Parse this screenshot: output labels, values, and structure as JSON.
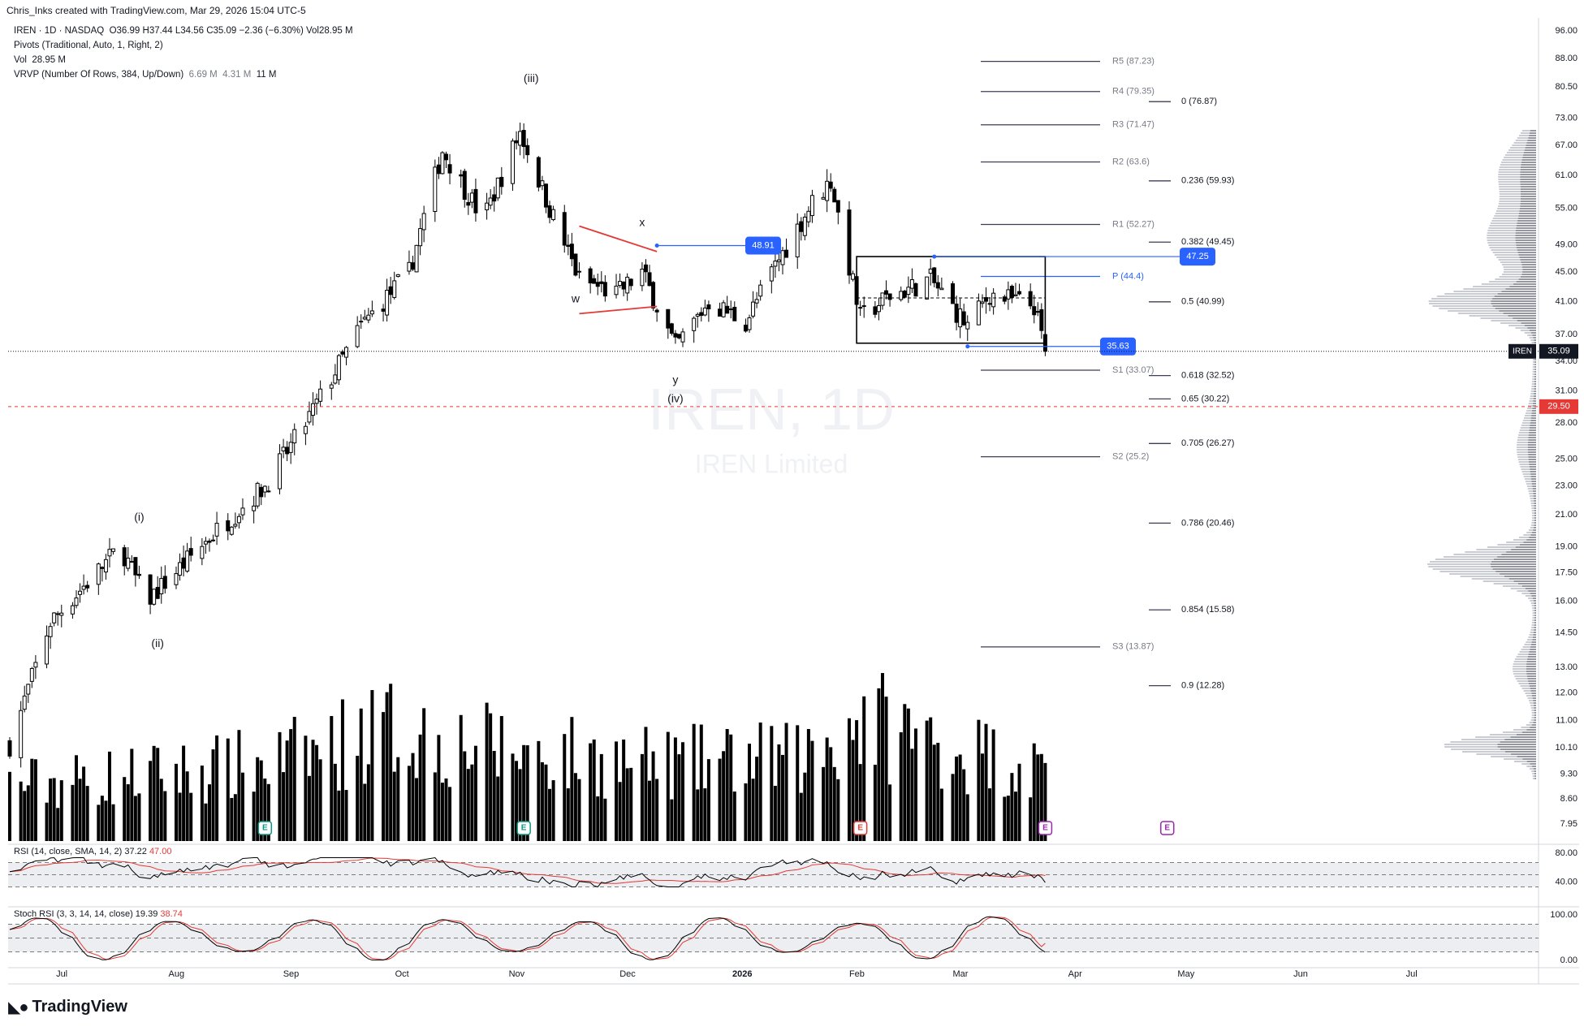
{
  "header": {
    "attribution": "Chris_Inks created with TradingView.com, Mar 29, 2026 15:04 UTC-5"
  },
  "legend": {
    "symbol_line": "IREN · 1D · NASDAQ",
    "ohlc": {
      "o": "O36.99",
      "h": "H37.44",
      "l": "L34.56",
      "c": "C35.09",
      "chg": "−2.36 (−6.30%)",
      "vol": "Vol28.95 M"
    },
    "pivots": "Pivots (Traditional, Auto, 1, Right, 2)",
    "vol_label": "Vol",
    "vol_value": "28.95 M",
    "vrvp_label": "VRVP (Number Of Rows, 384, Up/Down)",
    "vrvp_v1": "6.69 M",
    "vrvp_v2": "4.31 M",
    "vrvp_v3": "11 M"
  },
  "watermark": {
    "symbol": "IREN, 1D",
    "name": "IREN Limited"
  },
  "footer": {
    "brand": "TradingView"
  },
  "colors": {
    "candle": "#000000",
    "pivot_line": "#3d3f52",
    "pivot_p": "#2962ff",
    "fib_line": "#3d3f52",
    "accent_blue": "#2962ff",
    "red_line": "#e53935",
    "label_red": "#e53935",
    "rsi_line": "#000000",
    "rsi_sma": "#e53935",
    "stoch_k": "#000000",
    "stoch_d": "#e53935",
    "vrvp": "#b2b5be"
  },
  "chart_data": {
    "type": "candlestick",
    "ticker": "IREN",
    "interval": "1D",
    "y_scale": "log",
    "ylim": [
      7.5,
      100
    ],
    "y_ticks": [
      "96.00",
      "88.00",
      "80.50",
      "73.00",
      "67.00",
      "61.00",
      "55.00",
      "49.00",
      "45.00",
      "41.00",
      "37.00",
      "34.00",
      "31.00",
      "28.00",
      "25.00",
      "23.00",
      "21.00",
      "19.00",
      "17.50",
      "16.00",
      "14.50",
      "13.00",
      "12.00",
      "11.00",
      "10.10",
      "9.30",
      "8.60",
      "7.95"
    ],
    "x_ticks": [
      "Jul",
      "Aug",
      "Sep",
      "Oct",
      "Nov",
      "Dec",
      "2026",
      "Feb",
      "Mar",
      "Apr",
      "May",
      "Jun",
      "Jul"
    ],
    "last_price": "35.09",
    "last_symbol": "IREN",
    "alert_price": "29.50",
    "pivots": [
      {
        "label": "R5 (87.23)",
        "value": 87.23
      },
      {
        "label": "R4 (79.35)",
        "value": 79.35
      },
      {
        "label": "R3 (71.47)",
        "value": 71.47
      },
      {
        "label": "R2 (63.6)",
        "value": 63.6
      },
      {
        "label": "R1 (52.27)",
        "value": 52.27
      },
      {
        "label": "P (44.4)",
        "value": 44.4
      },
      {
        "label": "S1 (33.07)",
        "value": 33.07
      },
      {
        "label": "S2 (25.2)",
        "value": 25.2
      },
      {
        "label": "S3 (13.87)",
        "value": 13.87
      }
    ],
    "fibs": [
      {
        "label": "0 (76.87)",
        "value": 76.87
      },
      {
        "label": "0.236 (59.93)",
        "value": 59.93
      },
      {
        "label": "0.382 (49.45)",
        "value": 49.45
      },
      {
        "label": "0.5 (40.99)",
        "value": 40.99
      },
      {
        "label": "0.618 (32.52)",
        "value": 32.52
      },
      {
        "label": "0.65 (30.22)",
        "value": 30.22
      },
      {
        "label": "0.705 (26.27)",
        "value": 26.27
      },
      {
        "label": "0.786 (20.46)",
        "value": 20.46
      },
      {
        "label": "0.854 (15.58)",
        "value": 15.58
      },
      {
        "label": "0.9 (12.28)",
        "value": 12.28
      }
    ],
    "price_labels": [
      {
        "text": "48.91",
        "value": 48.91
      },
      {
        "text": "47.25",
        "value": 47.25
      },
      {
        "text": "35.63",
        "value": 35.63
      }
    ],
    "wave_labels": [
      "(i)",
      "(ii)",
      "(iii)",
      "(iv)",
      "w",
      "x",
      "y"
    ],
    "anchors": [
      {
        "date": "2025-06-20",
        "price": 10.2
      },
      {
        "date": "2025-07-01",
        "price": 15.0
      },
      {
        "date": "2025-07-20",
        "price": 19.0
      },
      {
        "date": "2025-07-27",
        "price": 16.0
      },
      {
        "date": "2025-08-15",
        "price": 20.0
      },
      {
        "date": "2025-08-28",
        "price": 23.0
      },
      {
        "date": "2025-09-08",
        "price": 28.0
      },
      {
        "date": "2025-09-23",
        "price": 38.0
      },
      {
        "date": "2025-10-06",
        "price": 45.0
      },
      {
        "date": "2025-10-15",
        "price": 66.0
      },
      {
        "date": "2025-10-26",
        "price": 53.0
      },
      {
        "date": "2025-11-05",
        "price": 70.0
      },
      {
        "date": "2025-11-13",
        "price": 55.0
      },
      {
        "date": "2025-11-21",
        "price": 44.0
      },
      {
        "date": "2025-12-01",
        "price": 42.0
      },
      {
        "date": "2025-12-08",
        "price": 45.0
      },
      {
        "date": "2025-12-17",
        "price": 35.5
      },
      {
        "date": "2025-12-26",
        "price": 41.0
      },
      {
        "date": "2026-01-05",
        "price": 38.5
      },
      {
        "date": "2026-01-12",
        "price": 45.0
      },
      {
        "date": "2026-01-23",
        "price": 56.0
      },
      {
        "date": "2026-01-28",
        "price": 60.0
      },
      {
        "date": "2026-02-05",
        "price": 39.0
      },
      {
        "date": "2026-02-12",
        "price": 41.5
      },
      {
        "date": "2026-02-24",
        "price": 44.0
      },
      {
        "date": "2026-03-06",
        "price": 38.0
      },
      {
        "date": "2026-03-12",
        "price": 42.0
      },
      {
        "date": "2026-03-24",
        "price": 40.5
      },
      {
        "date": "2026-03-27",
        "price": 35.09
      }
    ],
    "volume_anchors": [
      {
        "date": "2025-06-20",
        "value": 55
      },
      {
        "date": "2025-08-28",
        "value": 75
      },
      {
        "date": "2025-09-30",
        "value": 110
      },
      {
        "date": "2025-10-20",
        "value": 95
      },
      {
        "date": "2025-12-10",
        "value": 75
      },
      {
        "date": "2026-01-20",
        "value": 80
      },
      {
        "date": "2026-02-05",
        "value": 120
      },
      {
        "date": "2026-03-27",
        "value": 70
      }
    ],
    "earnings_markers": [
      "2025-08-28",
      "2025-11-06",
      "2026-02-05",
      "2026-03-27",
      "2026-04-29"
    ],
    "rsi": {
      "label": "RSI (14, close, SMA, 14, 2)",
      "value": "37.22",
      "sma_value": "47.00",
      "ticks": [
        "80.00",
        "40.00"
      ]
    },
    "stoch_rsi": {
      "label": "Stoch RSI (3, 3, 14, 14, close)",
      "k_value": "19.39",
      "d_value": "38.74",
      "ticks": [
        "100.00",
        "0.00"
      ]
    }
  }
}
